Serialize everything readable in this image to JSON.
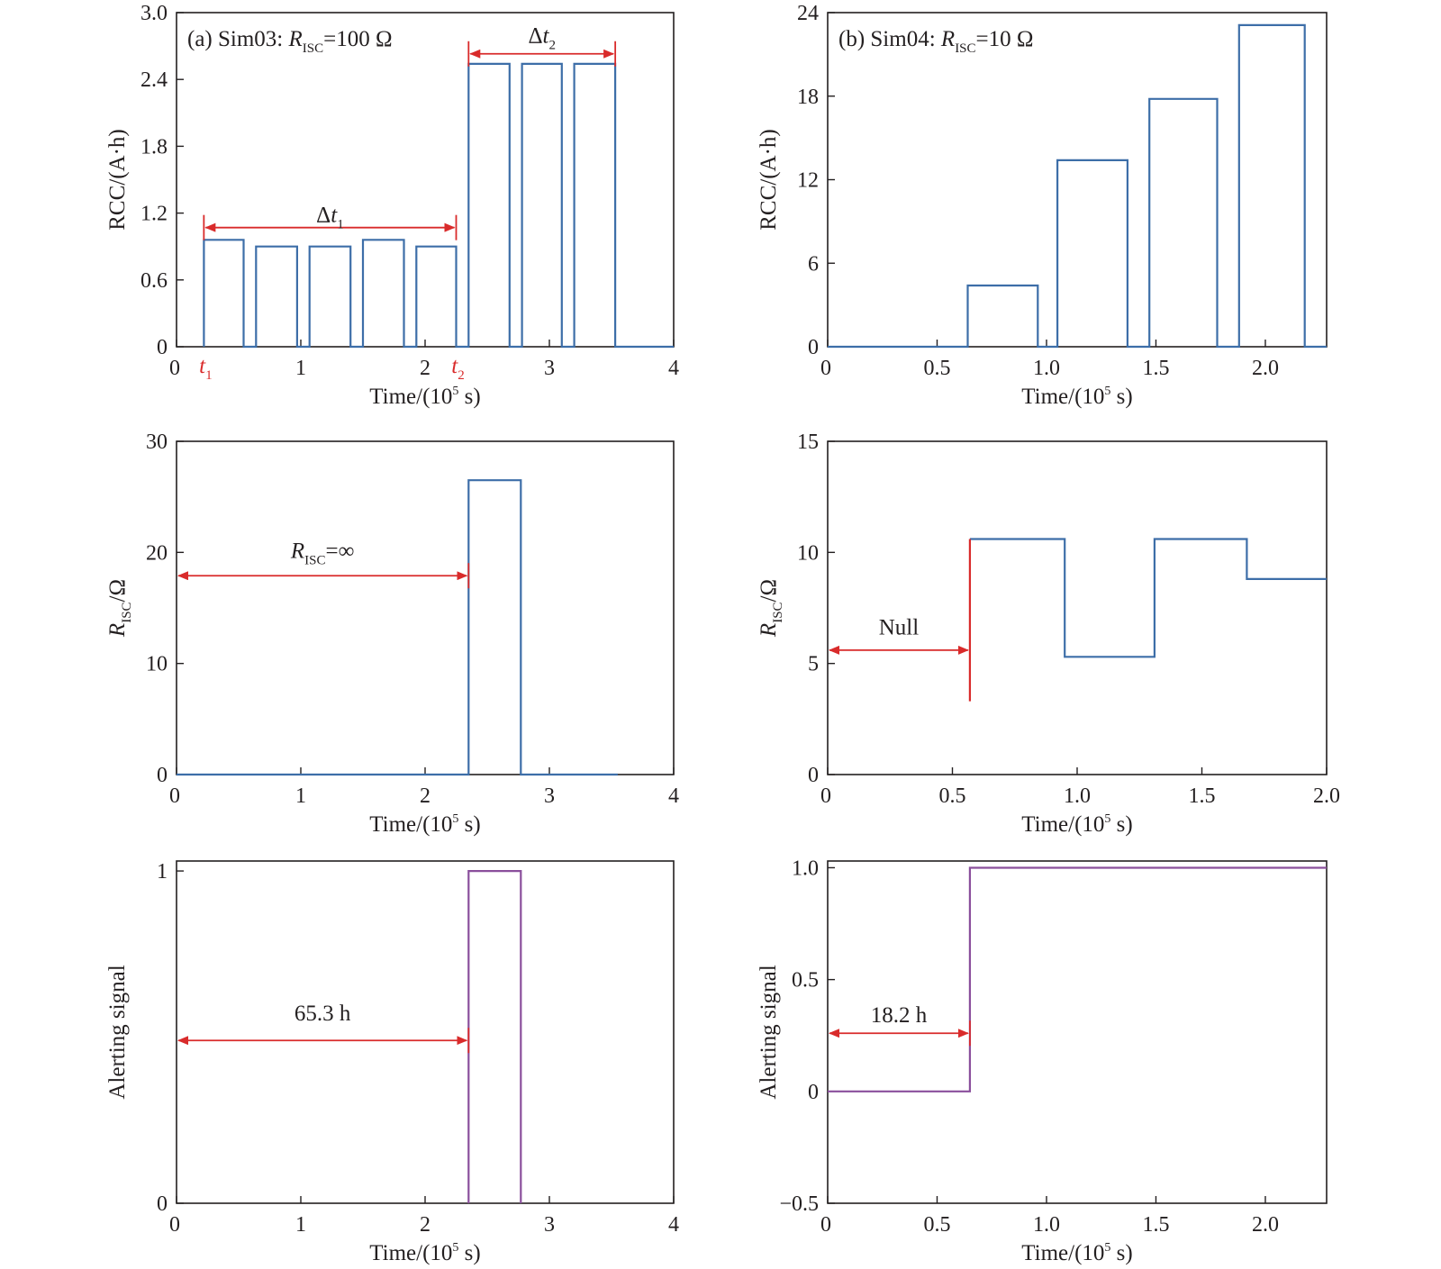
{
  "colors": {
    "series_blue": "#3d6ea8",
    "series_purple": "#8a4f9c",
    "annotation_red": "#d92b2b",
    "axes": "#231f20"
  },
  "chart_data": [
    {
      "panel": "(a) RCC",
      "type": "line",
      "step": true,
      "title_text": "(a) Sim03:",
      "title_r": "R",
      "title_sub": "ISC",
      "title_tail": "=100 Ω",
      "xlabel": "Time/(10",
      "xlabel_exp": "5",
      "xlabel_tail": " s)",
      "ylabel": "RCC/(A·h)",
      "xlim": [
        0,
        4
      ],
      "ylim": [
        0,
        3
      ],
      "xticks": [
        0,
        1,
        2,
        3,
        4
      ],
      "xtick_labels": [
        "0",
        "1",
        "2",
        "3",
        "4"
      ],
      "yticks": [
        0,
        0.6,
        1.2,
        1.8,
        2.4,
        3.0
      ],
      "ytick_labels": [
        "0",
        "0.6",
        "1.2",
        "1.8",
        "2.4",
        "3.0"
      ],
      "series": [
        {
          "color": "#3d6ea8",
          "points": [
            [
              0.22,
              0
            ],
            [
              0.22,
              0.96
            ],
            [
              0.54,
              0.96
            ],
            [
              0.54,
              0
            ],
            [
              0.64,
              0
            ],
            [
              0.64,
              0.9
            ],
            [
              0.97,
              0.9
            ],
            [
              0.97,
              0
            ],
            [
              1.07,
              0
            ],
            [
              1.07,
              0.9
            ],
            [
              1.4,
              0.9
            ],
            [
              1.4,
              0
            ],
            [
              1.5,
              0
            ],
            [
              1.5,
              0.96
            ],
            [
              1.83,
              0.96
            ],
            [
              1.83,
              0
            ],
            [
              1.93,
              0
            ],
            [
              1.93,
              0.9
            ],
            [
              2.25,
              0.9
            ],
            [
              2.25,
              0
            ],
            [
              2.35,
              0
            ],
            [
              2.35,
              2.54
            ],
            [
              2.68,
              2.54
            ],
            [
              2.68,
              0
            ],
            [
              2.78,
              0
            ],
            [
              2.78,
              2.54
            ],
            [
              3.1,
              2.54
            ],
            [
              3.1,
              0
            ],
            [
              3.2,
              0
            ],
            [
              3.2,
              2.54
            ],
            [
              3.53,
              2.54
            ],
            [
              3.53,
              0
            ],
            [
              4,
              0
            ]
          ]
        }
      ],
      "annotations": [
        {
          "from": 0.22,
          "to": 2.25,
          "y": 1.07,
          "label": "Δt",
          "label_sub": "1",
          "label_y": 1.12
        },
        {
          "from": 2.35,
          "to": 3.53,
          "y": 2.63,
          "label": "Δt",
          "label_sub": "2",
          "label_y": 2.73
        }
      ],
      "vmarkers": [
        {
          "x": 0.22,
          "label": "t",
          "label_sub": "1"
        },
        {
          "x": 2.25,
          "label": "t",
          "label_sub": "2"
        }
      ]
    },
    {
      "panel": "(b) RCC",
      "type": "line",
      "step": true,
      "title_text": "(b) Sim04:",
      "title_r": "R",
      "title_sub": "ISC",
      "title_tail": "=10 Ω",
      "xlabel": "Time/(10",
      "xlabel_exp": "5",
      "xlabel_tail": " s)",
      "ylabel": "RCC/(A·h)",
      "xlim": [
        0,
        2.28
      ],
      "ylim": [
        0,
        24
      ],
      "xticks": [
        0,
        0.5,
        1.0,
        1.5,
        2.0
      ],
      "xtick_labels": [
        "0",
        "0.5",
        "1.0",
        "1.5",
        "2.0"
      ],
      "yticks": [
        0,
        6,
        12,
        18,
        24
      ],
      "ytick_labels": [
        "0",
        "6",
        "12",
        "18",
        "24"
      ],
      "series": [
        {
          "color": "#3d6ea8",
          "points": [
            [
              0,
              0
            ],
            [
              0.64,
              0
            ],
            [
              0.64,
              4.4
            ],
            [
              0.96,
              4.4
            ],
            [
              0.96,
              0
            ],
            [
              1.05,
              0
            ],
            [
              1.05,
              13.4
            ],
            [
              1.37,
              13.4
            ],
            [
              1.37,
              0
            ],
            [
              1.47,
              0
            ],
            [
              1.47,
              17.8
            ],
            [
              1.78,
              17.8
            ],
            [
              1.78,
              0
            ],
            [
              1.88,
              0
            ],
            [
              1.88,
              23.1
            ],
            [
              2.18,
              23.1
            ],
            [
              2.18,
              0
            ],
            [
              2.28,
              0
            ]
          ]
        }
      ],
      "annotations": [],
      "vmarkers": []
    },
    {
      "panel": "(a) RISC",
      "type": "line",
      "step": true,
      "xlabel": "Time/(10",
      "xlabel_exp": "5",
      "xlabel_tail": " s)",
      "ylabel_r": "R",
      "ylabel_sub": "ISC",
      "ylabel_tail": "/Ω",
      "xlim": [
        0,
        4
      ],
      "ylim": [
        0,
        30
      ],
      "xticks": [
        0,
        1,
        2,
        3,
        4
      ],
      "xtick_labels": [
        "0",
        "1",
        "2",
        "3",
        "4"
      ],
      "yticks": [
        0,
        10,
        20,
        30
      ],
      "ytick_labels": [
        "0",
        "10",
        "20",
        "30"
      ],
      "series": [
        {
          "color": "#3d6ea8",
          "points": [
            [
              0,
              0
            ],
            [
              2.35,
              0
            ],
            [
              2.35,
              26.5
            ],
            [
              2.77,
              26.5
            ],
            [
              2.77,
              0
            ],
            [
              3.55,
              0
            ]
          ]
        }
      ],
      "annotations": [
        {
          "from": 0,
          "to": 2.35,
          "y": 17.9,
          "label_r": "R",
          "label_sub": "ISC",
          "label_tail": "=∞",
          "label_y": 19.5
        }
      ],
      "vmarkers": []
    },
    {
      "panel": "(b) RISC",
      "type": "line",
      "step": true,
      "xlabel": "Time/(10",
      "xlabel_exp": "5",
      "xlabel_tail": " s)",
      "ylabel_r": "R",
      "ylabel_sub": "ISC",
      "ylabel_tail": "/Ω",
      "xlim": [
        0,
        2.0
      ],
      "ylim": [
        0,
        15
      ],
      "xticks": [
        0,
        0.5,
        1.0,
        1.5,
        2.0
      ],
      "xtick_labels": [
        "0",
        "0.5",
        "1.0",
        "1.5",
        "2.0"
      ],
      "yticks": [
        0,
        5,
        10,
        15
      ],
      "ytick_labels": [
        "0",
        "5",
        "10",
        "15"
      ],
      "series": [
        {
          "color": "#3d6ea8",
          "points": [
            [
              0.57,
              10.6
            ],
            [
              0.95,
              10.6
            ],
            [
              0.95,
              5.3
            ],
            [
              1.31,
              5.3
            ],
            [
              1.31,
              10.6
            ],
            [
              1.68,
              10.6
            ],
            [
              1.68,
              8.8
            ],
            [
              2.0,
              8.8
            ]
          ]
        },
        {
          "color": "#d92b2b",
          "points": [
            [
              0.57,
              3.3
            ],
            [
              0.57,
              10.6
            ]
          ]
        }
      ],
      "annotations": [
        {
          "from": 0,
          "to": 0.57,
          "y": 5.6,
          "label": "Null",
          "label_y": 6.3
        }
      ],
      "vmarkers": []
    },
    {
      "panel": "(a) Alert",
      "type": "line",
      "step": true,
      "xlabel": "Time/(10",
      "xlabel_exp": "5",
      "xlabel_tail": " s)",
      "ylabel": "Alerting signal",
      "xlim": [
        0,
        4
      ],
      "ylim": [
        0,
        1.03
      ],
      "xticks": [
        0,
        1,
        2,
        3,
        4
      ],
      "xtick_labels": [
        "0",
        "1",
        "2",
        "3",
        "4"
      ],
      "yticks": [
        0,
        1
      ],
      "ytick_labels": [
        "0",
        "1"
      ],
      "series": [
        {
          "color": "#8a4f9c",
          "points": [
            [
              2.35,
              0
            ],
            [
              2.35,
              1
            ],
            [
              2.77,
              1
            ],
            [
              2.77,
              0
            ]
          ]
        }
      ],
      "annotations": [
        {
          "from": 0,
          "to": 2.35,
          "y": 0.49,
          "label": "65.3 h",
          "label_y": 0.55
        }
      ],
      "vmarkers": []
    },
    {
      "panel": "(b) Alert",
      "type": "line",
      "step": true,
      "xlabel": "Time/(10",
      "xlabel_exp": "5",
      "xlabel_tail": " s)",
      "ylabel": "Alerting signal",
      "xlim": [
        0,
        2.28
      ],
      "ylim": [
        -0.5,
        1.03
      ],
      "xticks": [
        0,
        0.5,
        1.0,
        1.5,
        2.0
      ],
      "xtick_labels": [
        "0",
        "0.5",
        "1.0",
        "1.5",
        "2.0"
      ],
      "yticks": [
        -0.5,
        0,
        0.5,
        1.0
      ],
      "ytick_labels": [
        "−0.5",
        "0",
        "0.5",
        "1.0"
      ],
      "series": [
        {
          "color": "#8a4f9c",
          "points": [
            [
              0,
              0
            ],
            [
              0.65,
              0
            ],
            [
              0.65,
              1
            ],
            [
              2.28,
              1
            ]
          ]
        }
      ],
      "annotations": [
        {
          "from": 0,
          "to": 0.65,
          "y": 0.26,
          "label": "18.2 h",
          "label_y": 0.31
        }
      ],
      "vmarkers": []
    }
  ]
}
